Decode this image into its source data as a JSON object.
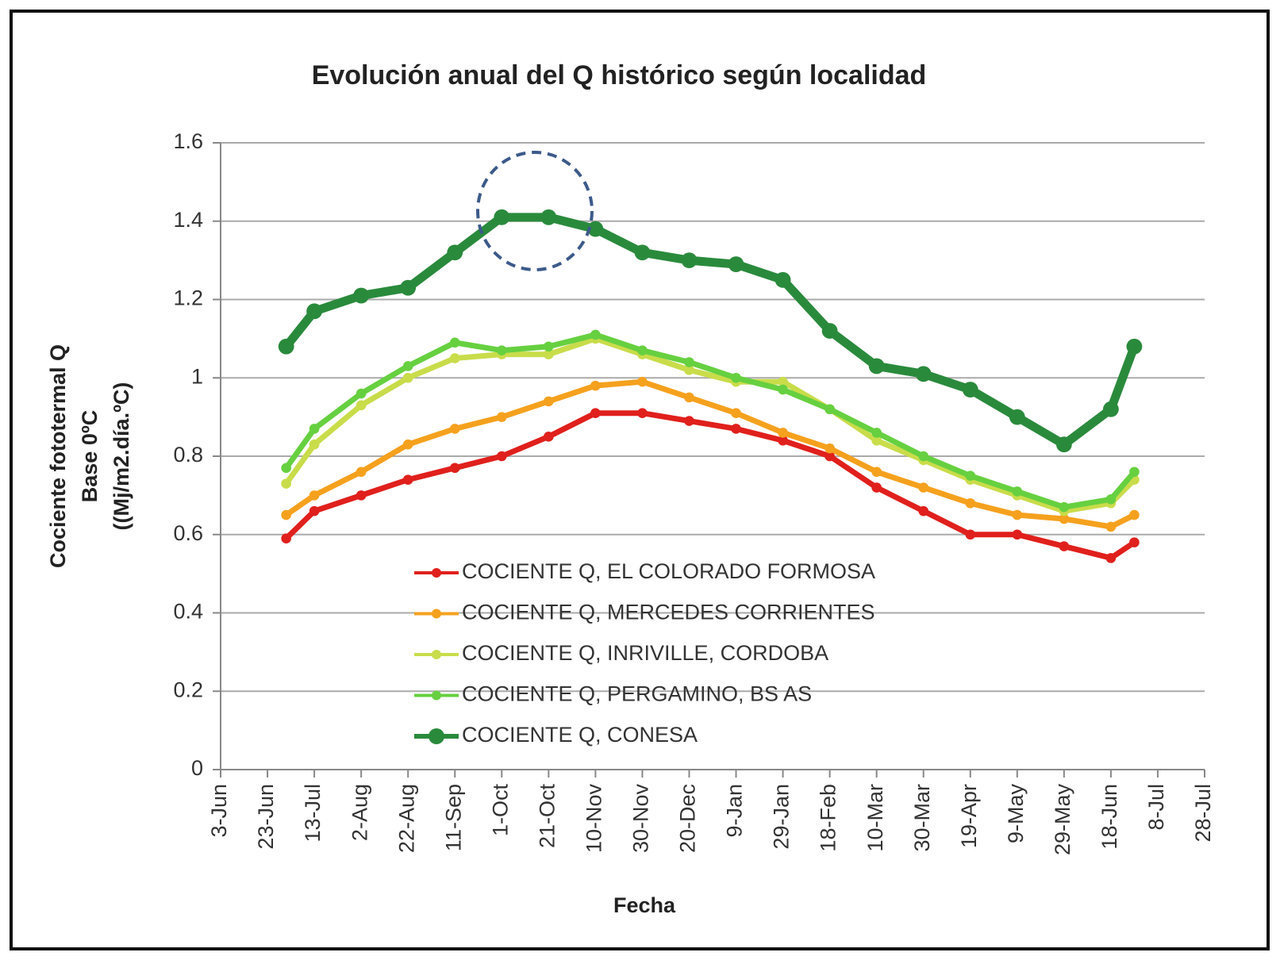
{
  "chart_data": {
    "type": "line",
    "title": "Evolución anual  del Q histórico según localidad",
    "x_label": "Fecha",
    "y_label": [
      "Cociente fototermal Q",
      "Base  0ºC",
      "((Mj/m2.día.ºC)"
    ],
    "x": [
      28,
      40,
      60,
      80,
      100,
      120,
      140,
      160,
      180,
      200,
      220,
      240,
      260,
      280,
      300,
      320,
      340,
      360,
      380,
      390
    ],
    "xlim": [
      0,
      420
    ],
    "xticks": [
      {
        "value": 0,
        "label": "3-Jun"
      },
      {
        "value": 20,
        "label": "23-Jun"
      },
      {
        "value": 40,
        "label": "13-Jul"
      },
      {
        "value": 60,
        "label": "2-Aug"
      },
      {
        "value": 80,
        "label": "22-Aug"
      },
      {
        "value": 100,
        "label": "11-Sep"
      },
      {
        "value": 120,
        "label": "1-Oct"
      },
      {
        "value": 140,
        "label": "21-Oct"
      },
      {
        "value": 160,
        "label": "10-Nov"
      },
      {
        "value": 180,
        "label": "30-Nov"
      },
      {
        "value": 200,
        "label": "20-Dec"
      },
      {
        "value": 220,
        "label": "9-Jan"
      },
      {
        "value": 240,
        "label": "29-Jan"
      },
      {
        "value": 260,
        "label": "18-Feb"
      },
      {
        "value": 280,
        "label": "10-Mar"
      },
      {
        "value": 300,
        "label": "30-Mar"
      },
      {
        "value": 320,
        "label": "19-Apr"
      },
      {
        "value": 340,
        "label": "9-May"
      },
      {
        "value": 360,
        "label": "29-May"
      },
      {
        "value": 380,
        "label": "18-Jun"
      },
      {
        "value": 400,
        "label": "8-Jul"
      },
      {
        "value": 420,
        "label": "28-Jul"
      }
    ],
    "ylim": [
      0,
      1.6
    ],
    "yticks": [
      0,
      0.2,
      0.4,
      0.6,
      0.8,
      1,
      1.2,
      1.4,
      1.6
    ],
    "grid": true,
    "legend": "center",
    "series": [
      {
        "name": "COCIENTE Q, EL COLORADO FORMOSA",
        "color": "#e0201c",
        "values": [
          0.59,
          0.66,
          0.7,
          0.74,
          0.77,
          0.8,
          0.85,
          0.91,
          0.91,
          0.89,
          0.87,
          0.84,
          0.8,
          0.72,
          0.66,
          0.6,
          0.6,
          0.57,
          0.54,
          0.58
        ]
      },
      {
        "name": "COCIENTE Q, MERCEDES CORRIENTES",
        "color": "#f5a11e",
        "values": [
          0.65,
          0.7,
          0.76,
          0.83,
          0.87,
          0.9,
          0.94,
          0.98,
          0.99,
          0.95,
          0.91,
          0.86,
          0.82,
          0.76,
          0.72,
          0.68,
          0.65,
          0.64,
          0.62,
          0.65
        ]
      },
      {
        "name": "COCIENTE Q, INRIVILLE, CORDOBA",
        "color": "#c9dc4a",
        "values": [
          0.73,
          0.83,
          0.93,
          1.0,
          1.05,
          1.06,
          1.06,
          1.1,
          1.06,
          1.02,
          0.99,
          0.99,
          0.92,
          0.84,
          0.79,
          0.74,
          0.7,
          0.66,
          0.68,
          0.74
        ]
      },
      {
        "name": "COCIENTE Q, PERGAMINO, BS AS",
        "color": "#66d040",
        "values": [
          0.77,
          0.87,
          0.96,
          1.03,
          1.09,
          1.07,
          1.08,
          1.11,
          1.07,
          1.04,
          1.0,
          0.97,
          0.92,
          0.86,
          0.8,
          0.75,
          0.71,
          0.67,
          0.69,
          0.76
        ]
      },
      {
        "name": "COCIENTE Q, CONESA",
        "color": "#2a8a3c",
        "values": [
          1.08,
          1.17,
          1.21,
          1.23,
          1.32,
          1.41,
          1.41,
          1.38,
          1.32,
          1.3,
          1.29,
          1.25,
          1.12,
          1.03,
          1.01,
          0.97,
          0.9,
          0.83,
          0.92,
          1.08
        ]
      }
    ]
  }
}
